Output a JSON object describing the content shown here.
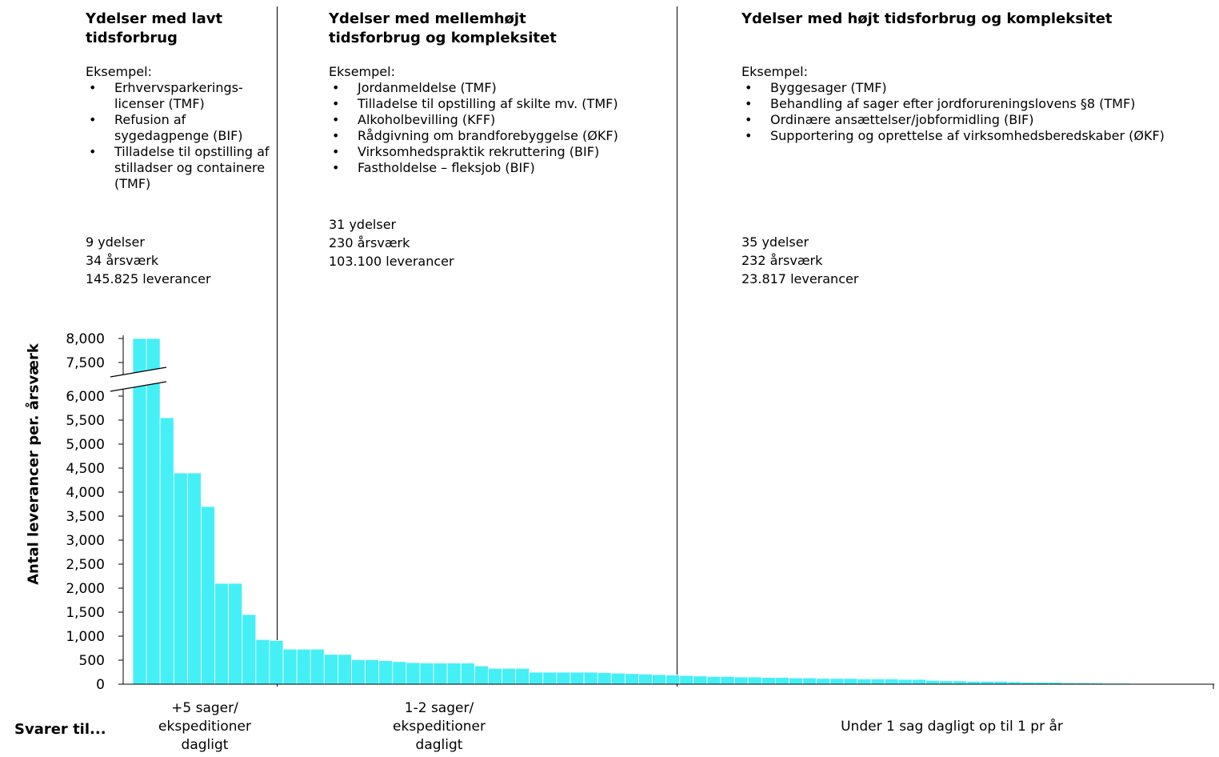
{
  "columns": [
    {
      "heading": "Ydelser med lavt tidsforbrug",
      "example_label": "Eksempel:",
      "examples": [
        "Erhvervsparkerings-licenser (TMF)",
        "Refusion af sygedagpenge (BIF)",
        "Tilladelse til opstilling af stilladser og containere (TMF)"
      ],
      "stats": [
        "9 ydelser",
        "34 årsværk",
        "145.825 leverancer"
      ]
    },
    {
      "heading": "Ydelser med mellemhøjt tidsforbrug og kompleksitet",
      "example_label": "Eksempel:",
      "examples": [
        "Jordanmeldelse (TMF)",
        "Tilladelse til opstilling af skilte mv. (TMF)",
        "Alkoholbevilling (KFF)",
        "Rådgivning om brandforebyggelse (ØKF)",
        "Virksomhedspraktik rekruttering (BIF)",
        "Fastholdelse – fleksjob (BIF)"
      ],
      "stats": [
        "31 ydelser",
        "230 årsværk",
        "103.100 leverancer"
      ]
    },
    {
      "heading": "Ydelser med højt tidsforbrug og kompleksitet",
      "example_label": "Eksempel:",
      "examples": [
        "Byggesager (TMF)",
        "Behandling af sager efter jordforureningslovens §8 (TMF)",
        "Ordinære ansættelser/jobformidling (BIF)",
        "Supportering og oprettelse af virksomhedsberedskaber (ØKF)"
      ],
      "stats": [
        "35 ydelser",
        "232 årsværk",
        "23.817 leverancer"
      ]
    }
  ],
  "chart_data": {
    "type": "bar",
    "ylabel": "Antal leverancer per. årsværk",
    "yticks": [
      "0",
      "500",
      "1,000",
      "1,500",
      "2,000",
      "2,500",
      "3,000",
      "3,500",
      "4,000",
      "4,500",
      "5,000",
      "5,500",
      "6,000",
      "7,500",
      "8,000"
    ],
    "ytick_values": [
      0,
      500,
      1000,
      1500,
      2000,
      2500,
      3000,
      3500,
      4000,
      4500,
      5000,
      5500,
      6000,
      7500,
      8000
    ],
    "axis_break": [
      6000,
      7500
    ],
    "bar_color": "#44f0f6",
    "values": [
      8000,
      8000,
      5550,
      4400,
      4400,
      3700,
      2100,
      2100,
      1450,
      930,
      910,
      730,
      730,
      730,
      620,
      620,
      510,
      510,
      490,
      470,
      450,
      440,
      440,
      440,
      440,
      380,
      330,
      330,
      330,
      250,
      250,
      250,
      250,
      250,
      240,
      230,
      220,
      210,
      200,
      190,
      180,
      170,
      160,
      160,
      150,
      150,
      140,
      140,
      130,
      130,
      120,
      120,
      120,
      110,
      110,
      110,
      100,
      100,
      80,
      70,
      70,
      60,
      60,
      60,
      50,
      40,
      40,
      40,
      30,
      30,
      25,
      20,
      20,
      15,
      15
    ]
  },
  "bottom": {
    "prefix": "Svarer til...",
    "labels": [
      [
        "+5 sager/",
        "ekspeditioner",
        "dagligt"
      ],
      [
        "1-2 sager/",
        "ekspeditioner",
        "dagligt"
      ],
      [
        "Under 1 sag dagligt op til 1 pr år"
      ]
    ]
  }
}
